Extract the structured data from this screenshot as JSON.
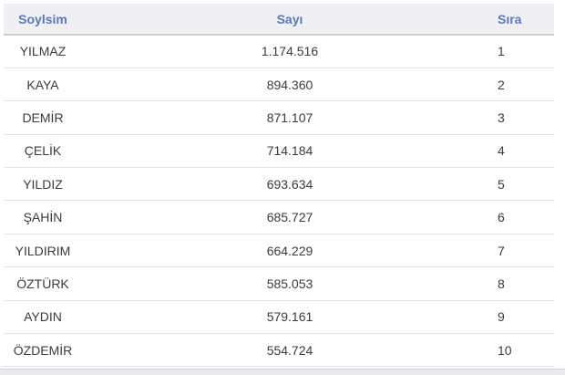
{
  "table": {
    "columns": [
      {
        "label": "Soylsim"
      },
      {
        "label": "Sayı"
      },
      {
        "label": "Sıra"
      }
    ],
    "rows": [
      {
        "surname": "YILMAZ",
        "count": "1.174.516",
        "rank": "1"
      },
      {
        "surname": "KAYA",
        "count": "894.360",
        "rank": "2"
      },
      {
        "surname": "DEMİR",
        "count": "871.107",
        "rank": "3"
      },
      {
        "surname": "ÇELİK",
        "count": "714.184",
        "rank": "4"
      },
      {
        "surname": "YILDIZ",
        "count": "693.634",
        "rank": "5"
      },
      {
        "surname": "ŞAHİN",
        "count": "685.727",
        "rank": "6"
      },
      {
        "surname": "YILDIRIM",
        "count": "664.229",
        "rank": "7"
      },
      {
        "surname": "ÖZTÜRK",
        "count": "585.053",
        "rank": "8"
      },
      {
        "surname": "AYDIN",
        "count": "579.161",
        "rank": "9"
      },
      {
        "surname": "ÖZDEMİR",
        "count": "554.724",
        "rank": "10"
      }
    ]
  },
  "colors": {
    "header_text": "#5a78b8",
    "header_bg": "#f0f0f4",
    "row_separator": "#e4e4e8",
    "cell_text": "#3b3b41",
    "footer_strip_bg": "#eaeaee"
  }
}
